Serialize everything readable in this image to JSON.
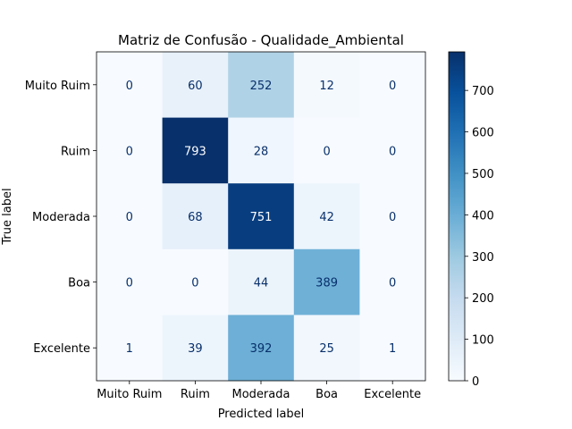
{
  "chart_data": {
    "type": "heatmap",
    "title": "Matriz de Confusão - Qualidade_Ambiental",
    "xlabel": "Predicted label",
    "ylabel": "True label",
    "x_categories": [
      "Muito Ruim",
      "Ruim",
      "Moderada",
      "Boa",
      "Excelente"
    ],
    "y_categories": [
      "Muito Ruim",
      "Ruim",
      "Moderada",
      "Boa",
      "Excelente"
    ],
    "values": [
      [
        0,
        60,
        252,
        12,
        0
      ],
      [
        0,
        793,
        28,
        0,
        0
      ],
      [
        0,
        68,
        751,
        42,
        0
      ],
      [
        0,
        0,
        44,
        389,
        0
      ],
      [
        1,
        39,
        392,
        25,
        1
      ]
    ],
    "colormap": "Blues",
    "colorbar": {
      "range": [
        0,
        793
      ],
      "ticks": [
        0,
        100,
        200,
        300,
        400,
        500,
        600,
        700
      ]
    }
  }
}
